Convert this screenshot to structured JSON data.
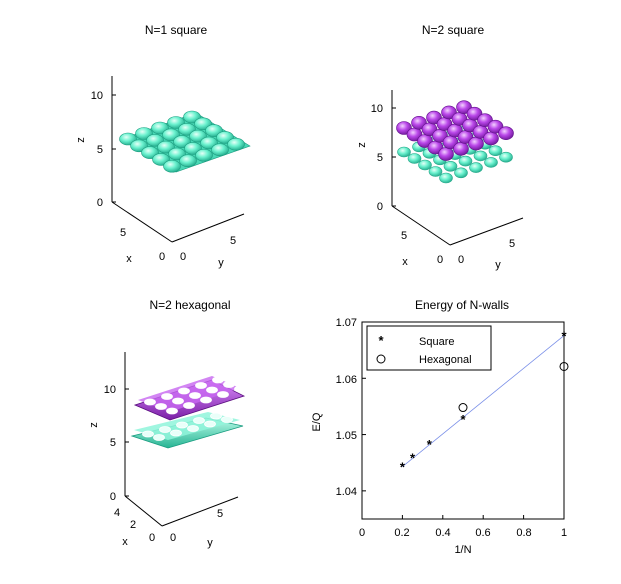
{
  "panels": {
    "p1": {
      "title": "N=1 square",
      "z_ticks": [
        "10",
        "5",
        "0"
      ],
      "x_ticks": [
        "5",
        "0"
      ],
      "y_ticks": [
        "0",
        "5"
      ],
      "xlabel": "x",
      "ylabel": "y",
      "zlabel": "z"
    },
    "p2": {
      "title": "N=2 square",
      "z_ticks": [
        "10",
        "5",
        "0"
      ],
      "x_ticks": [
        "5",
        "0"
      ],
      "y_ticks": [
        "0",
        "5"
      ],
      "xlabel": "x",
      "ylabel": "y",
      "zlabel": "z"
    },
    "p3": {
      "title": "N=2 hexagonal",
      "z_ticks": [
        "10",
        "5",
        "0"
      ],
      "x_ticks": [
        "4",
        "2",
        "0"
      ],
      "y_ticks": [
        "0",
        "5"
      ],
      "xlabel": "x",
      "ylabel": "y",
      "zlabel": "z"
    }
  },
  "colors": {
    "cyan": "#5de8c5",
    "magenta": "#b43ce6",
    "fit_line": "#7a8fe8"
  },
  "chart_data": {
    "type": "scatter",
    "title": "Energy of N-walls",
    "xlabel": "1/N",
    "ylabel": "E/Q",
    "xlim": [
      0,
      1
    ],
    "ylim": [
      1.035,
      1.07
    ],
    "x_ticks": [
      "0",
      "0.2",
      "0.4",
      "0.6",
      "0.8",
      "1"
    ],
    "y_ticks": [
      "1.04",
      "1.05",
      "1.06",
      "1.07"
    ],
    "series": [
      {
        "name": "Square",
        "marker": "star",
        "x": [
          0.2,
          0.25,
          0.333,
          0.5,
          1.0
        ],
        "y": [
          1.0443,
          1.0459,
          1.0483,
          1.0528,
          1.0676
        ]
      },
      {
        "name": "Hexagonal",
        "marker": "circle",
        "x": [
          0.5,
          1.0
        ],
        "y": [
          1.0548,
          1.0621
        ]
      }
    ],
    "fit_line": {
      "x": [
        0.2,
        1.0
      ],
      "y": [
        1.0443,
        1.0676
      ]
    },
    "legend": {
      "position": "top-left",
      "entries": [
        "Square",
        "Hexagonal"
      ]
    }
  }
}
